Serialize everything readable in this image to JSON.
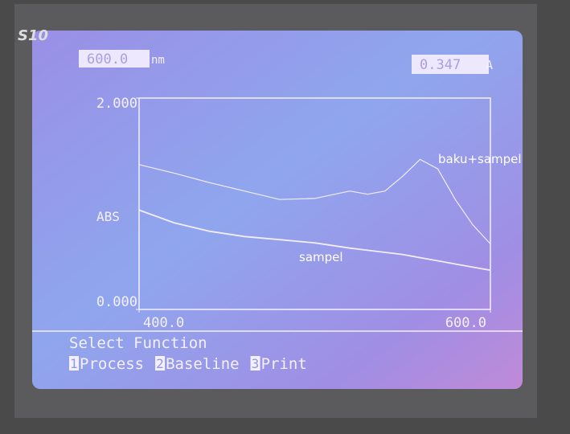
{
  "screen": {
    "brand": "S10",
    "wavelength": "600.0",
    "wavelength_unit": "nm",
    "absorbance": "0.347",
    "absorbance_unit": "A",
    "menu_title": "Select Function",
    "menu": [
      {
        "key": "1",
        "label": "Process"
      },
      {
        "key": "2",
        "label": "Baseline"
      },
      {
        "key": "3",
        "label": "Print"
      }
    ]
  },
  "chart_data": {
    "type": "line",
    "ylabel": "ABS",
    "x": [
      400,
      420,
      440,
      460,
      480,
      500,
      520,
      530,
      540,
      550,
      560,
      570,
      580,
      590,
      600
    ],
    "series": [
      {
        "name": "baku+sampel",
        "color": "#f2ecff",
        "values": [
          1.37,
          1.29,
          1.2,
          1.12,
          1.04,
          1.05,
          1.12,
          1.09,
          1.12,
          1.26,
          1.42,
          1.33,
          1.04,
          0.8,
          0.62
        ]
      },
      {
        "name": "sampel",
        "color": "#f2ecff",
        "values": [
          0.94,
          0.82,
          0.74,
          0.69,
          0.66,
          0.63,
          0.58,
          0.56,
          0.54,
          0.52,
          0.49,
          0.46,
          0.43,
          0.4,
          0.37
        ]
      }
    ],
    "xlim": [
      400,
      600
    ],
    "ylim": [
      0,
      2
    ],
    "xticks": [
      {
        "value": 400,
        "label": "400.0"
      },
      {
        "value": 600,
        "label": "600.0"
      }
    ],
    "yticks": [
      {
        "value": 0,
        "label": "0.000"
      },
      {
        "value": 2,
        "label": "2.000"
      }
    ]
  }
}
